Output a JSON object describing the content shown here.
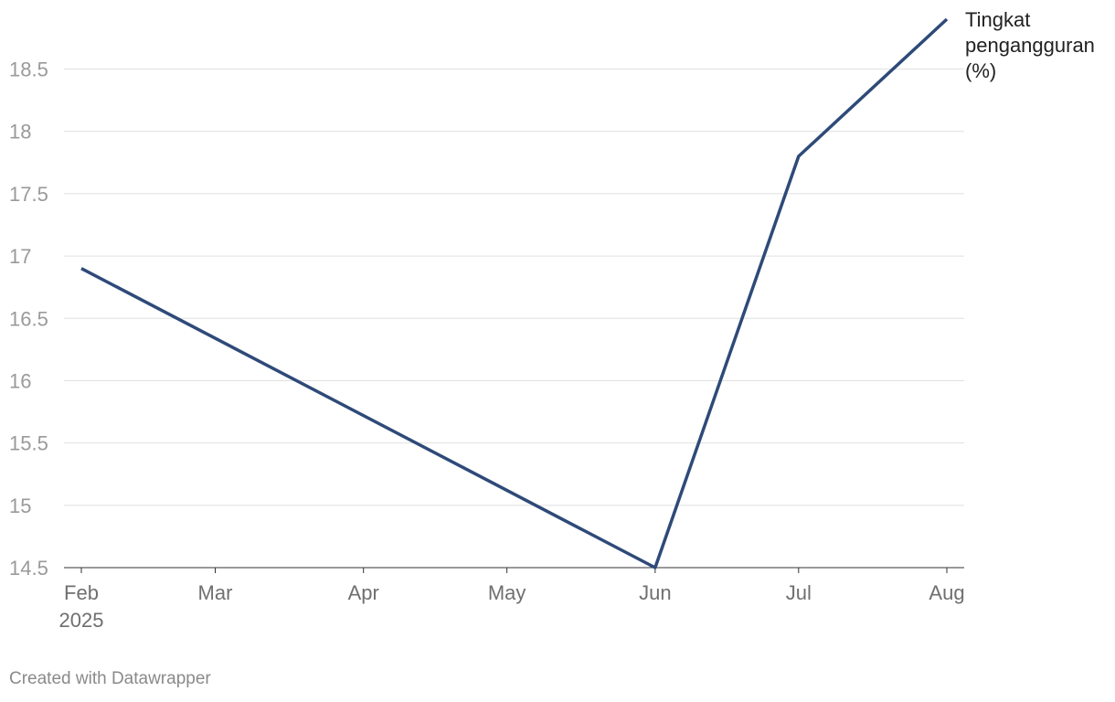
{
  "chart_data": {
    "type": "line",
    "x": [
      "2025-02",
      "2025-06",
      "2025-07",
      "2025-08"
    ],
    "series": [
      {
        "name": "Tingkat pengangguran (%)",
        "color": "#2e4a78",
        "values": [
          16.9,
          14.5,
          17.8,
          18.9
        ]
      }
    ],
    "xlim": [
      "2025-02",
      "2025-08"
    ],
    "xticks": [
      {
        "value": "2025-02",
        "label": "Feb"
      },
      {
        "value": "2025-03",
        "label": "Mar"
      },
      {
        "value": "2025-04",
        "label": "Apr"
      },
      {
        "value": "2025-05",
        "label": "May"
      },
      {
        "value": "2025-06",
        "label": "Jun"
      },
      {
        "value": "2025-07",
        "label": "Jul"
      },
      {
        "value": "2025-08",
        "label": "Aug"
      }
    ],
    "x_year_label": "2025",
    "ylim": [
      14.5,
      18.9
    ],
    "yticks": [
      14.5,
      15,
      15.5,
      16,
      16.5,
      17,
      17.5,
      18,
      18.5
    ],
    "grid": true,
    "footer": "Created with Datawrapper"
  }
}
